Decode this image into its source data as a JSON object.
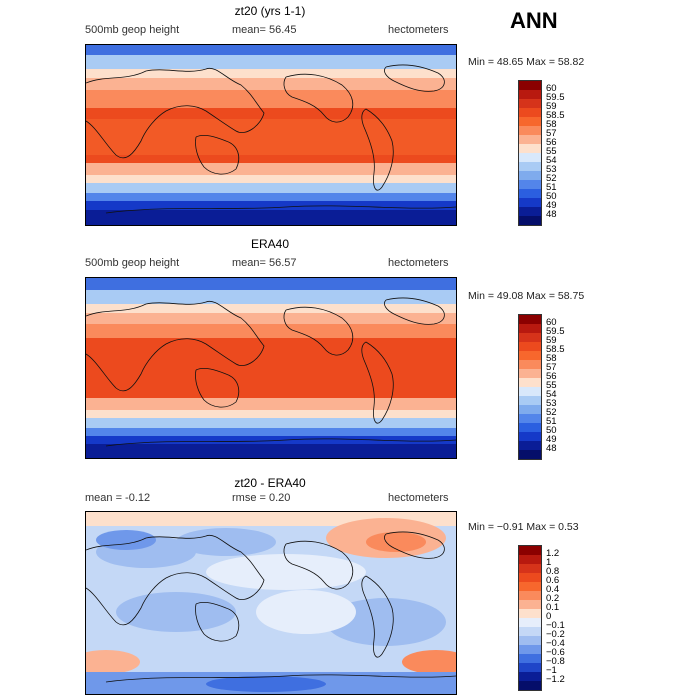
{
  "season": "ANN",
  "panels": [
    {
      "title": "zt20 (yrs 1-1)",
      "left_label": "500mb geop height",
      "stat": "mean=  56.45",
      "units": "hectometers",
      "minmax": "Min =  48.65 Max =  58.82",
      "levels": [
        "60",
        "59.5",
        "59",
        "58.5",
        "58",
        "57",
        "56",
        "55",
        "54",
        "53",
        "52",
        "51",
        "50",
        "49",
        "48"
      ],
      "colors": [
        "#8b0000",
        "#b8190f",
        "#d6331a",
        "#ec4a1e",
        "#f7672d",
        "#fa8a5c",
        "#fbb292",
        "#fde0cc",
        "#d8e8fb",
        "#a9cbf4",
        "#7fabed",
        "#5385ea",
        "#2b5fe0",
        "#1539c8",
        "#0a1d96",
        "#050e6a"
      ]
    },
    {
      "title": "ERA40",
      "left_label": "500mb geop height",
      "stat": "mean=  56.57",
      "units": "hectometers",
      "minmax": "Min =  49.08 Max =  58.75",
      "levels": [
        "60",
        "59.5",
        "59",
        "58.5",
        "58",
        "57",
        "56",
        "55",
        "54",
        "53",
        "52",
        "51",
        "50",
        "49",
        "48"
      ],
      "colors": [
        "#8b0000",
        "#b8190f",
        "#d6331a",
        "#ec4a1e",
        "#f7672d",
        "#fa8a5c",
        "#fbb292",
        "#fde0cc",
        "#d8e8fb",
        "#a9cbf4",
        "#7fabed",
        "#5385ea",
        "#2b5fe0",
        "#1539c8",
        "#0a1d96",
        "#050e6a"
      ]
    },
    {
      "title": "zt20 - ERA40",
      "left_label": "mean =   -0.12",
      "stat": "rmse =    0.20",
      "units": "hectometers",
      "minmax": "Min =  −0.91 Max =    0.53",
      "levels": [
        "1.2",
        "1",
        "0.8",
        "0.6",
        "0.4",
        "0.2",
        "0.1",
        "0",
        "−0.1",
        "−0.2",
        "−0.4",
        "−0.6",
        "−0.8",
        "−1",
        "−1.2"
      ],
      "colors": [
        "#8b0000",
        "#b8190f",
        "#d6331a",
        "#ec4a1e",
        "#f7672d",
        "#fa8a5c",
        "#fbb292",
        "#fde0cc",
        "#e6eefb",
        "#c4d8f6",
        "#9fbdf0",
        "#6f98ea",
        "#3f6fe0",
        "#1f45c8",
        "#0a1d96",
        "#050e6a"
      ]
    }
  ],
  "chart_data": {
    "type": "heatmap",
    "maps": [
      {
        "title": "zt20 (yrs 1-1)",
        "mean": 56.45,
        "min": 48.65,
        "max": 58.82,
        "units": "hectometers"
      },
      {
        "title": "ERA40",
        "mean": 56.57,
        "min": 49.08,
        "max": 58.75,
        "units": "hectometers"
      },
      {
        "title": "zt20 - ERA40",
        "mean": -0.12,
        "rmse": 0.2,
        "min": -0.91,
        "max": 0.53,
        "units": "hectometers"
      }
    ]
  }
}
